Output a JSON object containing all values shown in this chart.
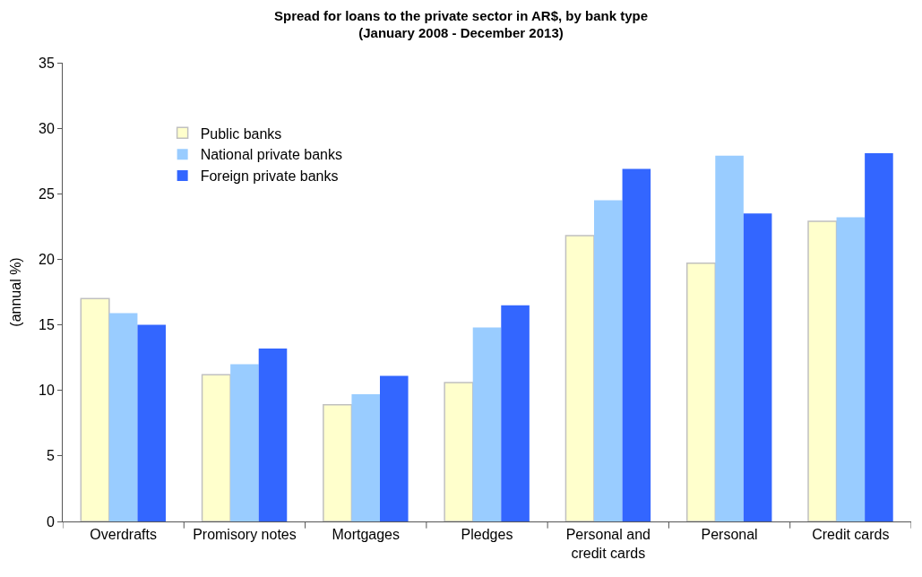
{
  "chart_data": {
    "type": "bar",
    "title": "Spread for loans to the private sector in AR$, by bank type\n(January 2008 - December 2013)",
    "ylabel": "(annual %)",
    "categories": [
      "Overdrafts",
      "Promisory notes",
      "Mortgages",
      "Pledges",
      "Personal and\ncredit cards",
      "Personal",
      "Credit cards"
    ],
    "series": [
      {
        "name": "Public banks",
        "color": "#ffffcc",
        "values": [
          17.0,
          11.2,
          8.9,
          10.6,
          21.8,
          19.7,
          22.9
        ]
      },
      {
        "name": "National private banks",
        "color": "#99ccff",
        "values": [
          15.9,
          12.0,
          9.7,
          14.8,
          24.5,
          27.9,
          23.2
        ]
      },
      {
        "name": "Foreign private banks",
        "color": "#3366ff",
        "values": [
          15.0,
          13.2,
          11.1,
          16.5,
          26.9,
          23.5,
          28.1
        ]
      }
    ],
    "ylim": [
      0,
      35
    ],
    "yticks": [
      0,
      5,
      10,
      15,
      20,
      25,
      30,
      35
    ],
    "grid": false,
    "legend": "top left"
  }
}
